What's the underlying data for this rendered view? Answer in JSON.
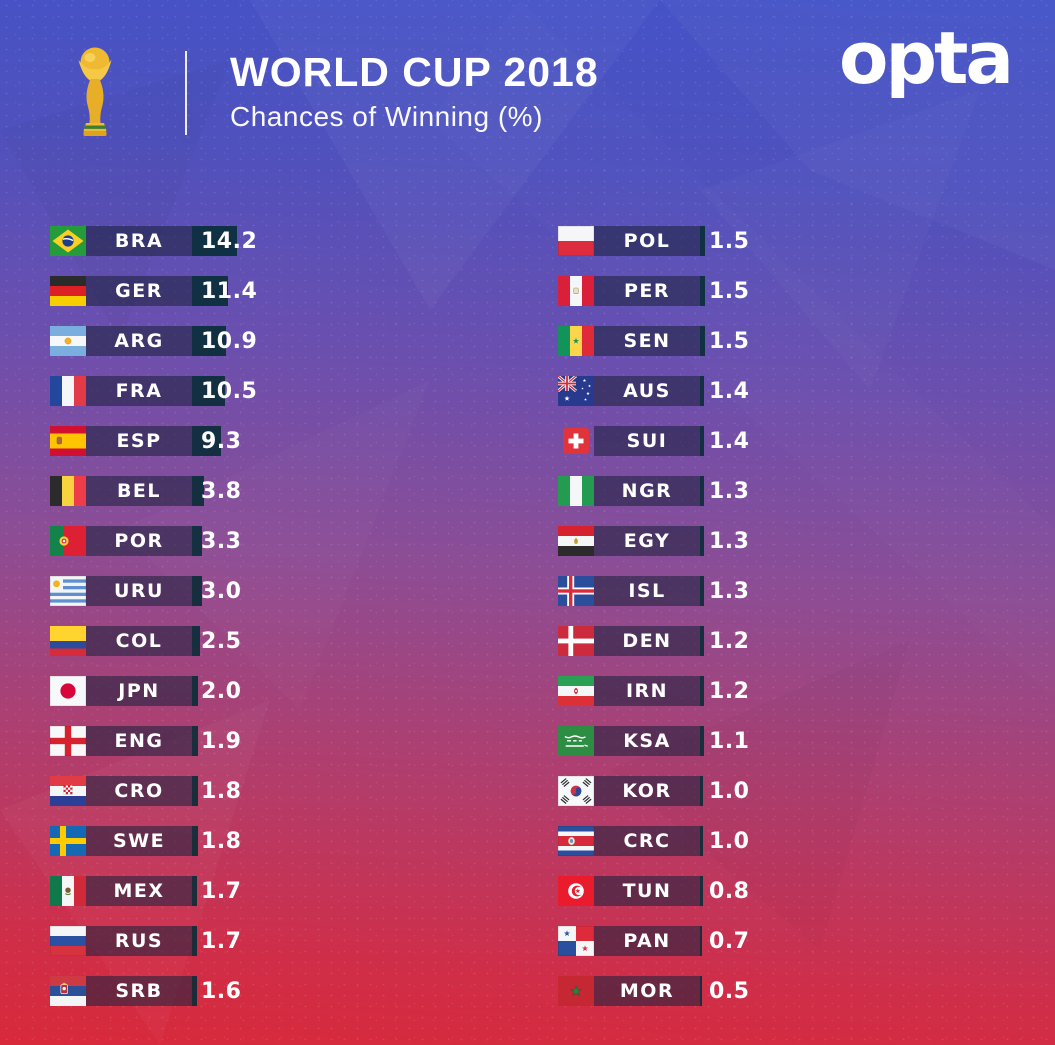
{
  "header": {
    "title": "WORLD CUP 2018",
    "subtitle": "Chances of Winning (%)",
    "brand_logo": "opta",
    "trophy_icon": "world-cup-trophy"
  },
  "colors": {
    "background_top": "#4353c8",
    "background_middle": "#8c4d95",
    "background_bottom": "#d8293a",
    "bar_label_background": "rgba(30,34,62,0.58)",
    "bar_value_segment": "rgba(8,44,54,0.9)",
    "text": "#ffffff",
    "trophy_gold": "#f0bb33"
  },
  "chart_data": {
    "type": "bar",
    "orientation": "horizontal",
    "title": "WORLD CUP 2018",
    "subtitle": "Chances of Winning (%)",
    "unit": "%",
    "value_range": [
      0,
      14.2
    ],
    "columns": 2,
    "rows_per_column": 16,
    "teams": [
      {
        "code": "BRA",
        "value": "14.2",
        "flag": "brazil"
      },
      {
        "code": "GER",
        "value": "11.4",
        "flag": "germany"
      },
      {
        "code": "ARG",
        "value": "10.9",
        "flag": "argentina"
      },
      {
        "code": "FRA",
        "value": "10.5",
        "flag": "france"
      },
      {
        "code": "ESP",
        "value": "9.3",
        "flag": "spain"
      },
      {
        "code": "BEL",
        "value": "3.8",
        "flag": "belgium"
      },
      {
        "code": "POR",
        "value": "3.3",
        "flag": "portugal"
      },
      {
        "code": "URU",
        "value": "3.0",
        "flag": "uruguay"
      },
      {
        "code": "COL",
        "value": "2.5",
        "flag": "colombia"
      },
      {
        "code": "JPN",
        "value": "2.0",
        "flag": "japan"
      },
      {
        "code": "ENG",
        "value": "1.9",
        "flag": "england"
      },
      {
        "code": "CRO",
        "value": "1.8",
        "flag": "croatia"
      },
      {
        "code": "SWE",
        "value": "1.8",
        "flag": "sweden"
      },
      {
        "code": "MEX",
        "value": "1.7",
        "flag": "mexico"
      },
      {
        "code": "RUS",
        "value": "1.7",
        "flag": "russia"
      },
      {
        "code": "SRB",
        "value": "1.6",
        "flag": "serbia"
      },
      {
        "code": "POL",
        "value": "1.5",
        "flag": "poland"
      },
      {
        "code": "PER",
        "value": "1.5",
        "flag": "peru"
      },
      {
        "code": "SEN",
        "value": "1.5",
        "flag": "senegal"
      },
      {
        "code": "AUS",
        "value": "1.4",
        "flag": "australia"
      },
      {
        "code": "SUI",
        "value": "1.4",
        "flag": "switzerland"
      },
      {
        "code": "NGR",
        "value": "1.3",
        "flag": "nigeria"
      },
      {
        "code": "EGY",
        "value": "1.3",
        "flag": "egypt"
      },
      {
        "code": "ISL",
        "value": "1.3",
        "flag": "iceland"
      },
      {
        "code": "DEN",
        "value": "1.2",
        "flag": "denmark"
      },
      {
        "code": "IRN",
        "value": "1.2",
        "flag": "iran"
      },
      {
        "code": "KSA",
        "value": "1.1",
        "flag": "saudi-arabia"
      },
      {
        "code": "KOR",
        "value": "1.0",
        "flag": "south-korea"
      },
      {
        "code": "CRC",
        "value": "1.0",
        "flag": "costa-rica"
      },
      {
        "code": "TUN",
        "value": "0.8",
        "flag": "tunisia"
      },
      {
        "code": "PAN",
        "value": "0.7",
        "flag": "panama"
      },
      {
        "code": "MOR",
        "value": "0.5",
        "flag": "morocco"
      }
    ]
  }
}
